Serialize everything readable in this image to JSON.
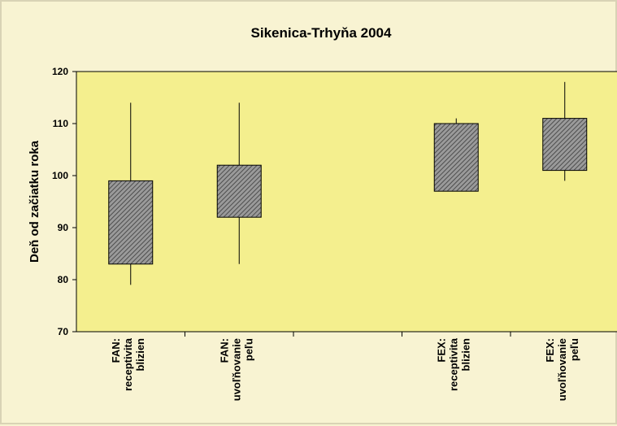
{
  "chart_data": {
    "type": "box",
    "title": "Sikenica-Trhyňa 2004",
    "ylabel": "Deň od začiatku roka",
    "xlabel": "",
    "ylim": [
      70,
      120
    ],
    "yticks": [
      70,
      80,
      90,
      100,
      110,
      120
    ],
    "slots": 5,
    "categories": [
      {
        "lines": [
          "FAN:",
          "receptivita",
          "blizien"
        ],
        "slot": 0,
        "min": 79,
        "q1": 83,
        "q3": 99,
        "max": 114
      },
      {
        "lines": [
          "FAN:",
          "uvoľňovanie",
          "peľu"
        ],
        "slot": 1,
        "min": 83,
        "q1": 92,
        "q3": 102,
        "max": 114
      },
      {
        "lines": [
          "FEX:",
          "receptivita",
          "blizien"
        ],
        "slot": 3,
        "min": 97,
        "q1": 97,
        "q3": 110,
        "max": 111
      },
      {
        "lines": [
          "FEX:",
          "uvoľňovanie",
          "peľu"
        ],
        "slot": 4,
        "min": 99,
        "q1": 101,
        "q3": 111,
        "max": 118
      }
    ],
    "grid": false,
    "colors": {
      "plot_background": "#f4ef8e",
      "page_background": "#f8f3d2",
      "box_fill": "#8c8c8c",
      "line": "#000000"
    }
  }
}
